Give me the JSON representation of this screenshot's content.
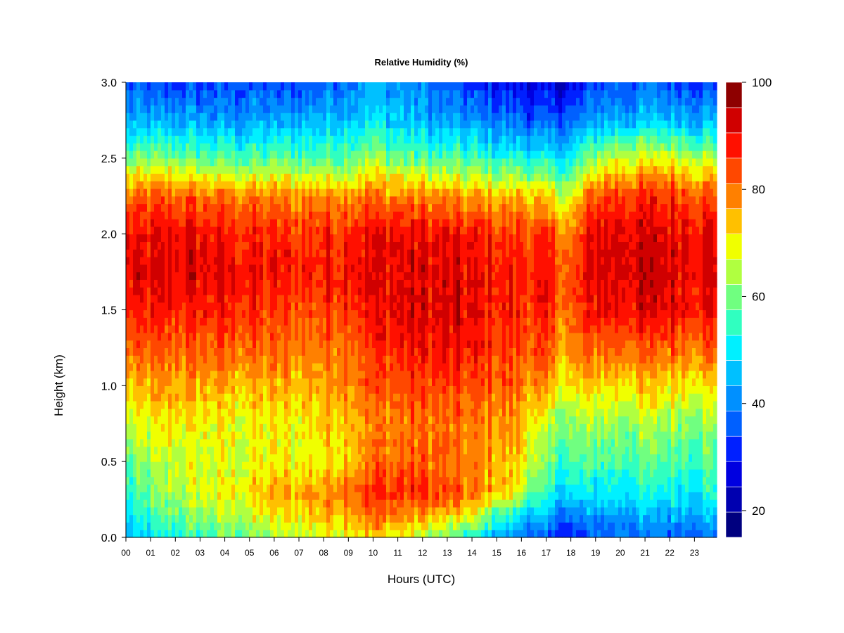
{
  "chart_data": {
    "type": "heatmap",
    "title": "Relative Humidity (%)",
    "xlabel": "Hours (UTC)",
    "ylabel": "Height (km)",
    "xlim": [
      0,
      23.9
    ],
    "ylim": [
      0,
      3.0
    ],
    "x_ticks": [
      "00",
      "01",
      "02",
      "03",
      "04",
      "05",
      "06",
      "07",
      "08",
      "09",
      "10",
      "11",
      "12",
      "13",
      "14",
      "15",
      "16",
      "17",
      "18",
      "19",
      "20",
      "21",
      "22",
      "23"
    ],
    "y_ticks": [
      "0.0",
      "0.5",
      "1.0",
      "1.5",
      "2.0",
      "2.5",
      "3.0"
    ],
    "colorbar": {
      "min": 15,
      "max": 100,
      "step": 5,
      "ticks": [
        "20",
        "40",
        "60",
        "80",
        "100"
      ],
      "colors": [
        "#00007f",
        "#0000b0",
        "#0000e0",
        "#0020ff",
        "#0060ff",
        "#0090ff",
        "#00c0ff",
        "#00f0ff",
        "#30ffc0",
        "#70ff80",
        "#b0ff40",
        "#f0ff00",
        "#ffc000",
        "#ff8000",
        "#ff4800",
        "#ff1000",
        "#d00000",
        "#8e0000"
      ]
    },
    "grid": false,
    "heights_km": [
      0.0,
      0.15,
      0.3,
      0.5,
      0.75,
      1.0,
      1.25,
      1.5,
      1.75,
      2.0,
      2.25,
      2.5,
      2.75,
      3.0
    ],
    "columns": [
      {
        "hour": 0,
        "rh": [
          45,
          50,
          55,
          60,
          68,
          76,
          84,
          90,
          94,
          92,
          84,
          62,
          45,
          35
        ]
      },
      {
        "hour": 2,
        "rh": [
          55,
          62,
          68,
          70,
          74,
          80,
          86,
          92,
          96,
          94,
          86,
          64,
          45,
          33
        ]
      },
      {
        "hour": 4,
        "rh": [
          60,
          68,
          72,
          70,
          72,
          78,
          86,
          92,
          95,
          93,
          84,
          60,
          44,
          35
        ]
      },
      {
        "hour": 6,
        "rh": [
          65,
          72,
          78,
          72,
          72,
          78,
          84,
          88,
          92,
          90,
          82,
          60,
          44,
          35
        ]
      },
      {
        "hour": 8,
        "rh": [
          72,
          78,
          82,
          74,
          76,
          80,
          84,
          88,
          92,
          90,
          82,
          60,
          48,
          38
        ]
      },
      {
        "hour": 9,
        "rh": [
          74,
          82,
          86,
          78,
          80,
          84,
          88,
          92,
          95,
          93,
          84,
          62,
          50,
          42
        ]
      },
      {
        "hour": 10,
        "rh": [
          76,
          84,
          90,
          84,
          82,
          86,
          90,
          94,
          96,
          94,
          84,
          66,
          52,
          45
        ]
      },
      {
        "hour": 12,
        "rh": [
          68,
          80,
          90,
          86,
          84,
          88,
          94,
          96,
          96,
          94,
          82,
          60,
          46,
          40
        ]
      },
      {
        "hour": 14,
        "rh": [
          55,
          72,
          84,
          82,
          82,
          86,
          92,
          94,
          94,
          92,
          80,
          58,
          42,
          33
        ]
      },
      {
        "hour": 15,
        "rh": [
          46,
          60,
          78,
          80,
          82,
          86,
          90,
          92,
          93,
          90,
          78,
          56,
          40,
          30
        ]
      },
      {
        "hour": 16,
        "rh": [
          40,
          52,
          70,
          76,
          80,
          84,
          88,
          90,
          92,
          90,
          80,
          56,
          38,
          28
        ]
      },
      {
        "hour": 17,
        "rh": [
          35,
          45,
          54,
          60,
          66,
          78,
          86,
          90,
          92,
          88,
          74,
          52,
          36,
          26
        ]
      },
      {
        "hour": 18,
        "rh": [
          30,
          40,
          50,
          58,
          64,
          72,
          80,
          84,
          86,
          82,
          70,
          52,
          38,
          26
        ]
      },
      {
        "hour": 19,
        "rh": [
          36,
          44,
          52,
          60,
          66,
          76,
          86,
          94,
          97,
          96,
          88,
          66,
          45,
          35
        ]
      },
      {
        "hour": 20,
        "rh": [
          40,
          46,
          54,
          60,
          66,
          76,
          86,
          95,
          97,
          96,
          90,
          70,
          47,
          37
        ]
      },
      {
        "hour": 22,
        "rh": [
          38,
          46,
          54,
          60,
          66,
          76,
          86,
          95,
          97,
          96,
          90,
          72,
          48,
          37
        ]
      },
      {
        "hour": 23.9,
        "rh": [
          40,
          48,
          56,
          60,
          66,
          76,
          86,
          93,
          96,
          95,
          88,
          68,
          46,
          35
        ]
      }
    ]
  }
}
